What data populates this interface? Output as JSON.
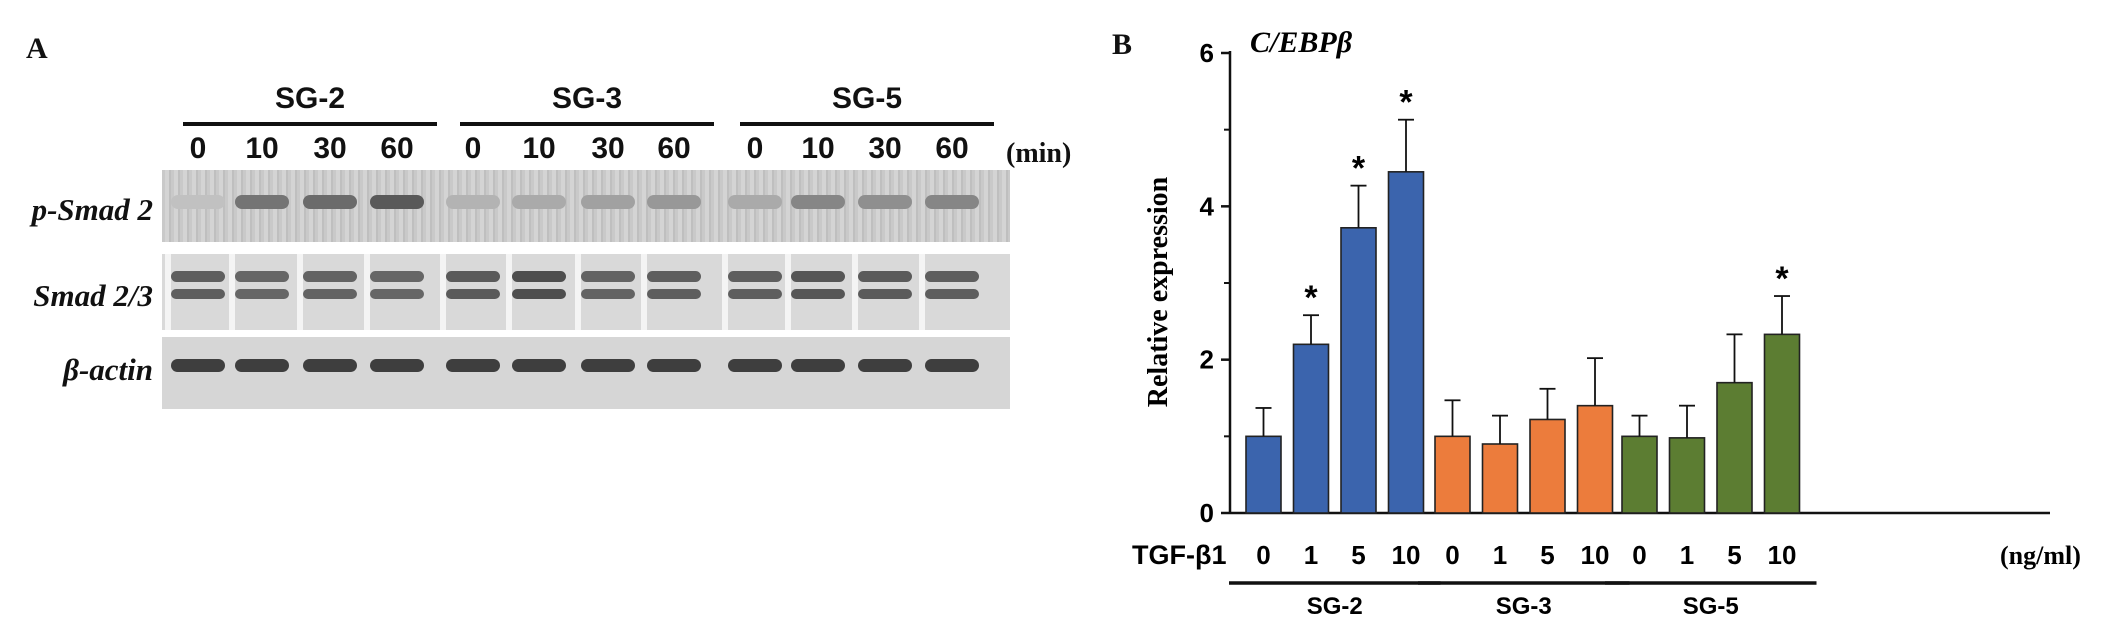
{
  "panel_a": {
    "label": "A",
    "groups": [
      "SG-2",
      "SG-3",
      "SG-5"
    ],
    "time_points": [
      "0",
      "10",
      "30",
      "60"
    ],
    "time_unit": "(min)",
    "rows": [
      "p-Smad 2",
      "Smad 2/3",
      "β-actin"
    ],
    "band_intensity": {
      "p-Smad 2": [
        0.12,
        0.55,
        0.6,
        0.7,
        0.2,
        0.25,
        0.3,
        0.35,
        0.25,
        0.45,
        0.4,
        0.45
      ],
      "Smad 2/3": [
        0.75,
        0.7,
        0.72,
        0.7,
        0.78,
        0.85,
        0.72,
        0.75,
        0.75,
        0.8,
        0.78,
        0.75
      ],
      "β-actin": [
        0.85,
        0.85,
        0.85,
        0.85,
        0.85,
        0.85,
        0.85,
        0.85,
        0.85,
        0.85,
        0.85,
        0.85
      ]
    }
  },
  "chart_data": {
    "type": "bar",
    "panel_label": "B",
    "title": "C/EBPβ",
    "ylabel": "Relative expression",
    "xlabel_prefix": "TGF-β1",
    "xlabel_unit": "(ng/ml)",
    "ylim": [
      0,
      6
    ],
    "yticks": [
      "0",
      "2",
      "4",
      "6"
    ],
    "groups": [
      {
        "name": "SG-2",
        "color": "#3b64ad",
        "categories": [
          "0",
          "1",
          "5",
          "10"
        ],
        "values": [
          1.0,
          2.2,
          3.72,
          4.45
        ],
        "errors": [
          0.37,
          0.38,
          0.55,
          0.68
        ],
        "significant": [
          false,
          true,
          true,
          true
        ]
      },
      {
        "name": "SG-3",
        "color": "#ec7c3c",
        "categories": [
          "0",
          "1",
          "5",
          "10"
        ],
        "values": [
          1.0,
          0.9,
          1.22,
          1.4
        ],
        "errors": [
          0.47,
          0.37,
          0.4,
          0.62
        ],
        "significant": [
          false,
          false,
          false,
          false
        ]
      },
      {
        "name": "SG-5",
        "color": "#5c7d32",
        "categories": [
          "0",
          "1",
          "5",
          "10"
        ],
        "values": [
          1.0,
          0.98,
          1.7,
          2.33
        ],
        "errors": [
          0.27,
          0.42,
          0.63,
          0.5
        ],
        "significant": [
          false,
          false,
          false,
          true
        ]
      }
    ],
    "significance_marker": "*"
  }
}
